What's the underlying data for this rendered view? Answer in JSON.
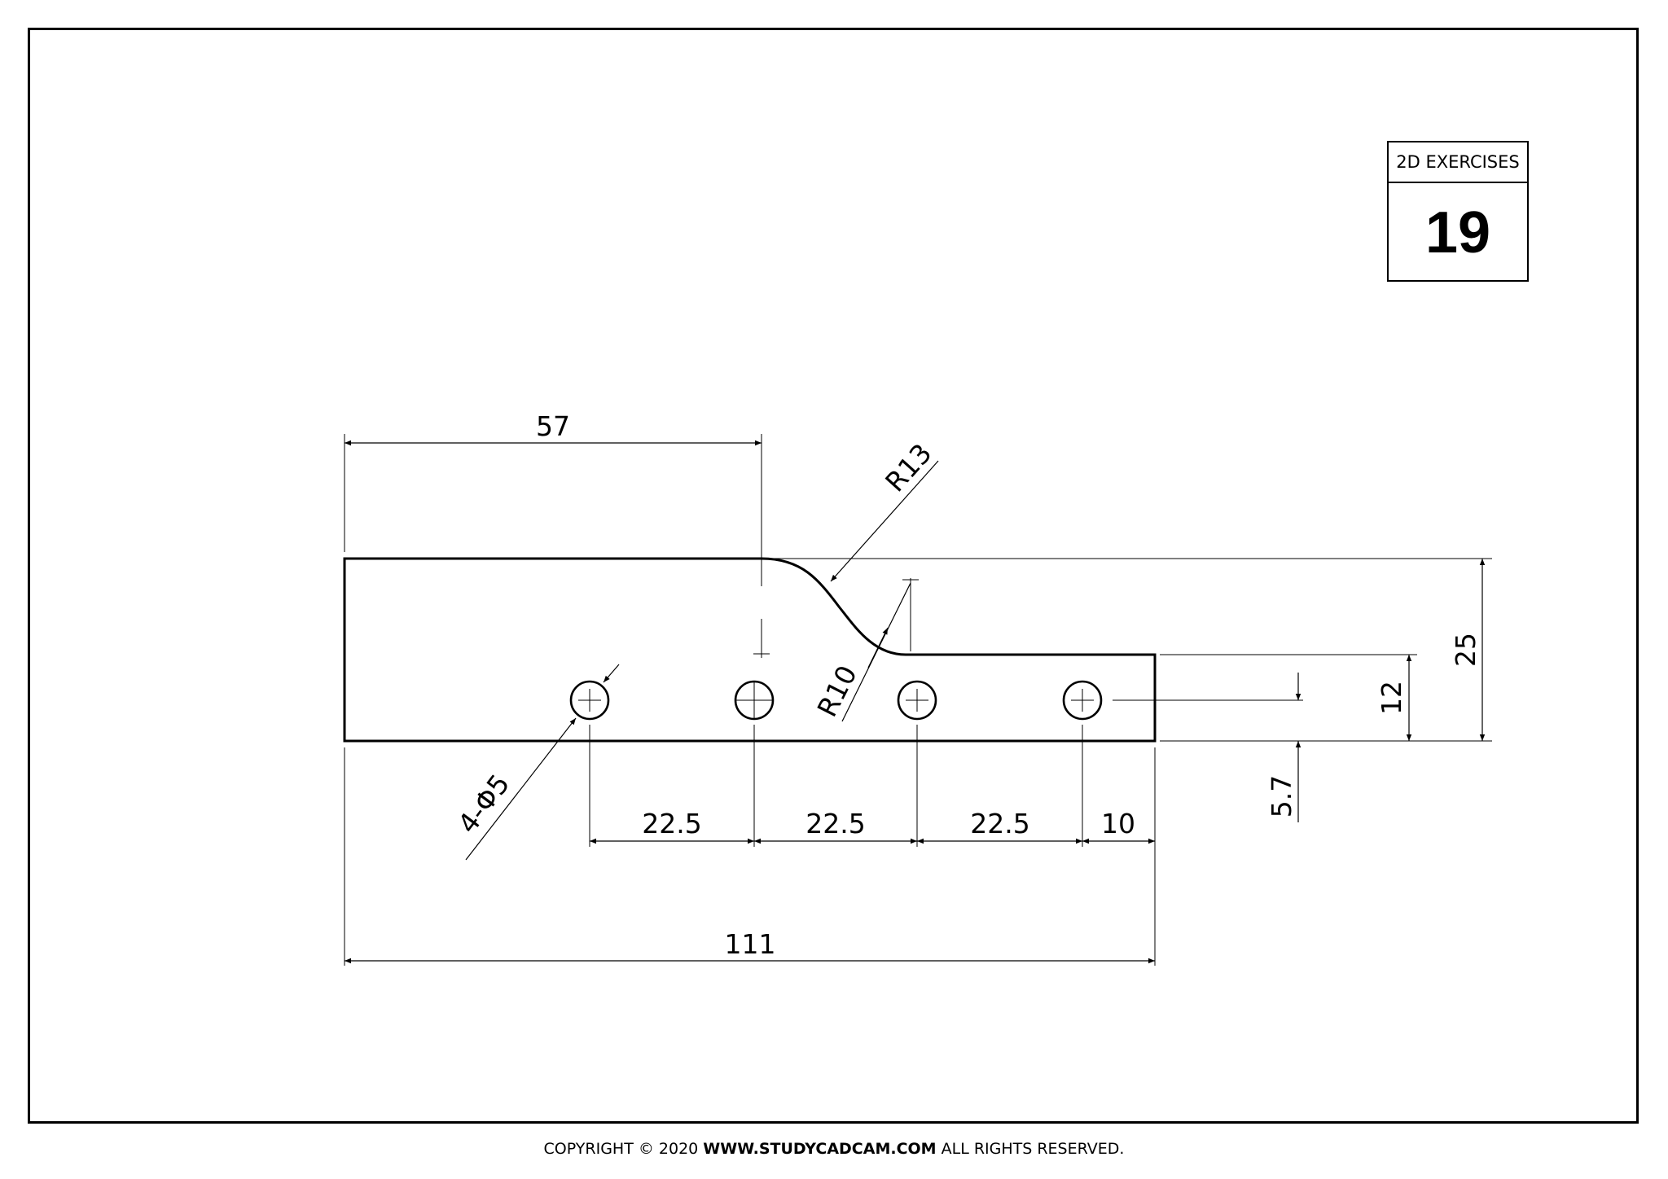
{
  "title_block": {
    "label": "2D EXERCISES",
    "number": "19"
  },
  "dimensions": {
    "left_top_length": "57",
    "top_radius": "R13",
    "lower_radius": "R10",
    "overall_height": "25",
    "step_height": "12",
    "hole_offset": "5.7",
    "hole_pitch_1": "22.5",
    "hole_pitch_2": "22.5",
    "hole_pitch_3": "22.5",
    "end_distance": "10",
    "overall_length": "111",
    "holes": "4-Φ5"
  },
  "footer": {
    "prefix": "COPYRIGHT © 2020 ",
    "site": "WWW.STUDYCADCAM.COM",
    "suffix": " ALL RIGHTS RESERVED."
  }
}
